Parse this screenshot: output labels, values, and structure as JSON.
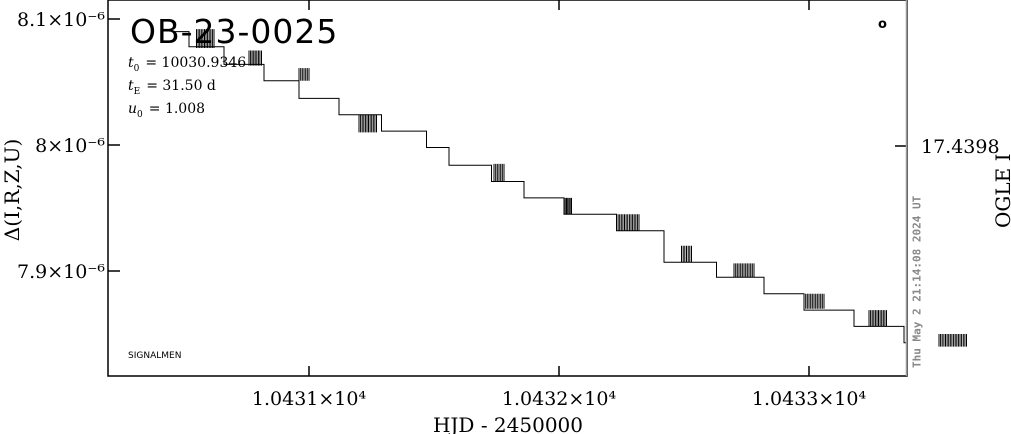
{
  "chart_data": {
    "type": "line",
    "title": "OB-23-0025",
    "xlabel": "HJD - 2450000",
    "ylabel": "Δ(I,R,Z,U)",
    "y2label": "OGLE I",
    "xlim": [
      10430.45,
      10433.65
    ],
    "ylim": [
      7.838e-06,
      8.1e-06
    ],
    "x_ticks": [
      {
        "value": 10431,
        "label": "1.0431×10⁴"
      },
      {
        "value": 10432,
        "label": "1.0432×10⁴"
      },
      {
        "value": 10433,
        "label": "1.0433×10⁴"
      }
    ],
    "y_ticks": [
      {
        "value": 8.1e-06,
        "label": "8.1×10⁻⁶"
      },
      {
        "value": 8e-06,
        "label": "8×10⁻⁶"
      },
      {
        "value": 7.9e-06,
        "label": "7.9×10⁻⁶"
      }
    ],
    "y2_tick_label": "17.4398",
    "params": [
      {
        "symbol": "t",
        "sub": "0",
        "value": "= 10030.9346"
      },
      {
        "symbol": "t",
        "sub": "E",
        "value": "= 31.50 d"
      },
      {
        "symbol": "u",
        "sub": "0",
        "value": "= 1.008"
      }
    ],
    "corner_label": "SIGNALMEN",
    "timestamp": "Thu May  2 21:14:08 2024 UT",
    "marker_symbol": "o",
    "now_line_x": 10433.39,
    "series": [
      {
        "values_x": [
          10430.45,
          10430.52,
          10430.52,
          10430.66,
          10430.66,
          10430.82,
          10430.82,
          10430.96,
          10430.96,
          10431.12,
          10431.12,
          10431.29,
          10431.29,
          10431.47,
          10431.47,
          10431.56,
          10431.56,
          10431.73,
          10431.73,
          10431.86,
          10431.86,
          10432.02,
          10432.02,
          10432.23,
          10432.23,
          10432.42,
          10432.42,
          10432.63,
          10432.63,
          10432.82,
          10432.82,
          10432.98,
          10432.98,
          10433.18,
          10433.18,
          10433.38,
          10433.38,
          10433.65
        ],
        "values_y": [
          8.09e-06,
          8.09e-06,
          8.078e-06,
          8.078e-06,
          8.064e-06,
          8.064e-06,
          8.051e-06,
          8.051e-06,
          8.037e-06,
          8.037e-06,
          8.024e-06,
          8.024e-06,
          8.011e-06,
          8.011e-06,
          7.998e-06,
          7.998e-06,
          7.984e-06,
          7.984e-06,
          7.971e-06,
          7.971e-06,
          7.958e-06,
          7.958e-06,
          7.945e-06,
          7.945e-06,
          7.932e-06,
          7.932e-06,
          7.907e-06,
          7.907e-06,
          7.895e-06,
          7.895e-06,
          7.882e-06,
          7.882e-06,
          7.869e-06,
          7.869e-06,
          7.856e-06,
          7.856e-06,
          7.843e-06,
          7.843e-06
        ]
      }
    ],
    "data_clusters": [
      {
        "x0": 10430.55,
        "x1": 10430.62,
        "y0": 8.077e-06,
        "y1": 8.092e-06
      },
      {
        "x0": 10430.76,
        "x1": 10430.81,
        "y0": 8.063e-06,
        "y1": 8.075e-06
      },
      {
        "x0": 10430.96,
        "x1": 10431.0,
        "y0": 8.051e-06,
        "y1": 8.061e-06
      },
      {
        "x0": 10431.2,
        "x1": 10431.27,
        "y0": 8.01e-06,
        "y1": 8.024e-06
      },
      {
        "x0": 10431.74,
        "x1": 10431.78,
        "y0": 7.971e-06,
        "y1": 7.985e-06
      },
      {
        "x0": 10432.02,
        "x1": 10432.05,
        "y0": 7.945e-06,
        "y1": 7.958e-06
      },
      {
        "x0": 10432.23,
        "x1": 10432.32,
        "y0": 7.932e-06,
        "y1": 7.945e-06
      },
      {
        "x0": 10432.7,
        "x1": 10432.78,
        "y0": 7.895e-06,
        "y1": 7.906e-06
      },
      {
        "x0": 10432.49,
        "x1": 10432.53,
        "y0": 7.907e-06,
        "y1": 7.92e-06
      },
      {
        "x0": 10432.98,
        "x1": 10433.06,
        "y0": 7.87e-06,
        "y1": 7.882e-06
      },
      {
        "x0": 10433.24,
        "x1": 10433.31,
        "y0": 7.856e-06,
        "y1": 7.869e-06
      },
      {
        "x0": 10433.52,
        "x1": 10433.63,
        "y0": 7.84e-06,
        "y1": 7.85e-06
      }
    ],
    "grid": false,
    "colors": {
      "line": "#000000",
      "now_line": "#999999",
      "timestamp": "#888888"
    }
  }
}
